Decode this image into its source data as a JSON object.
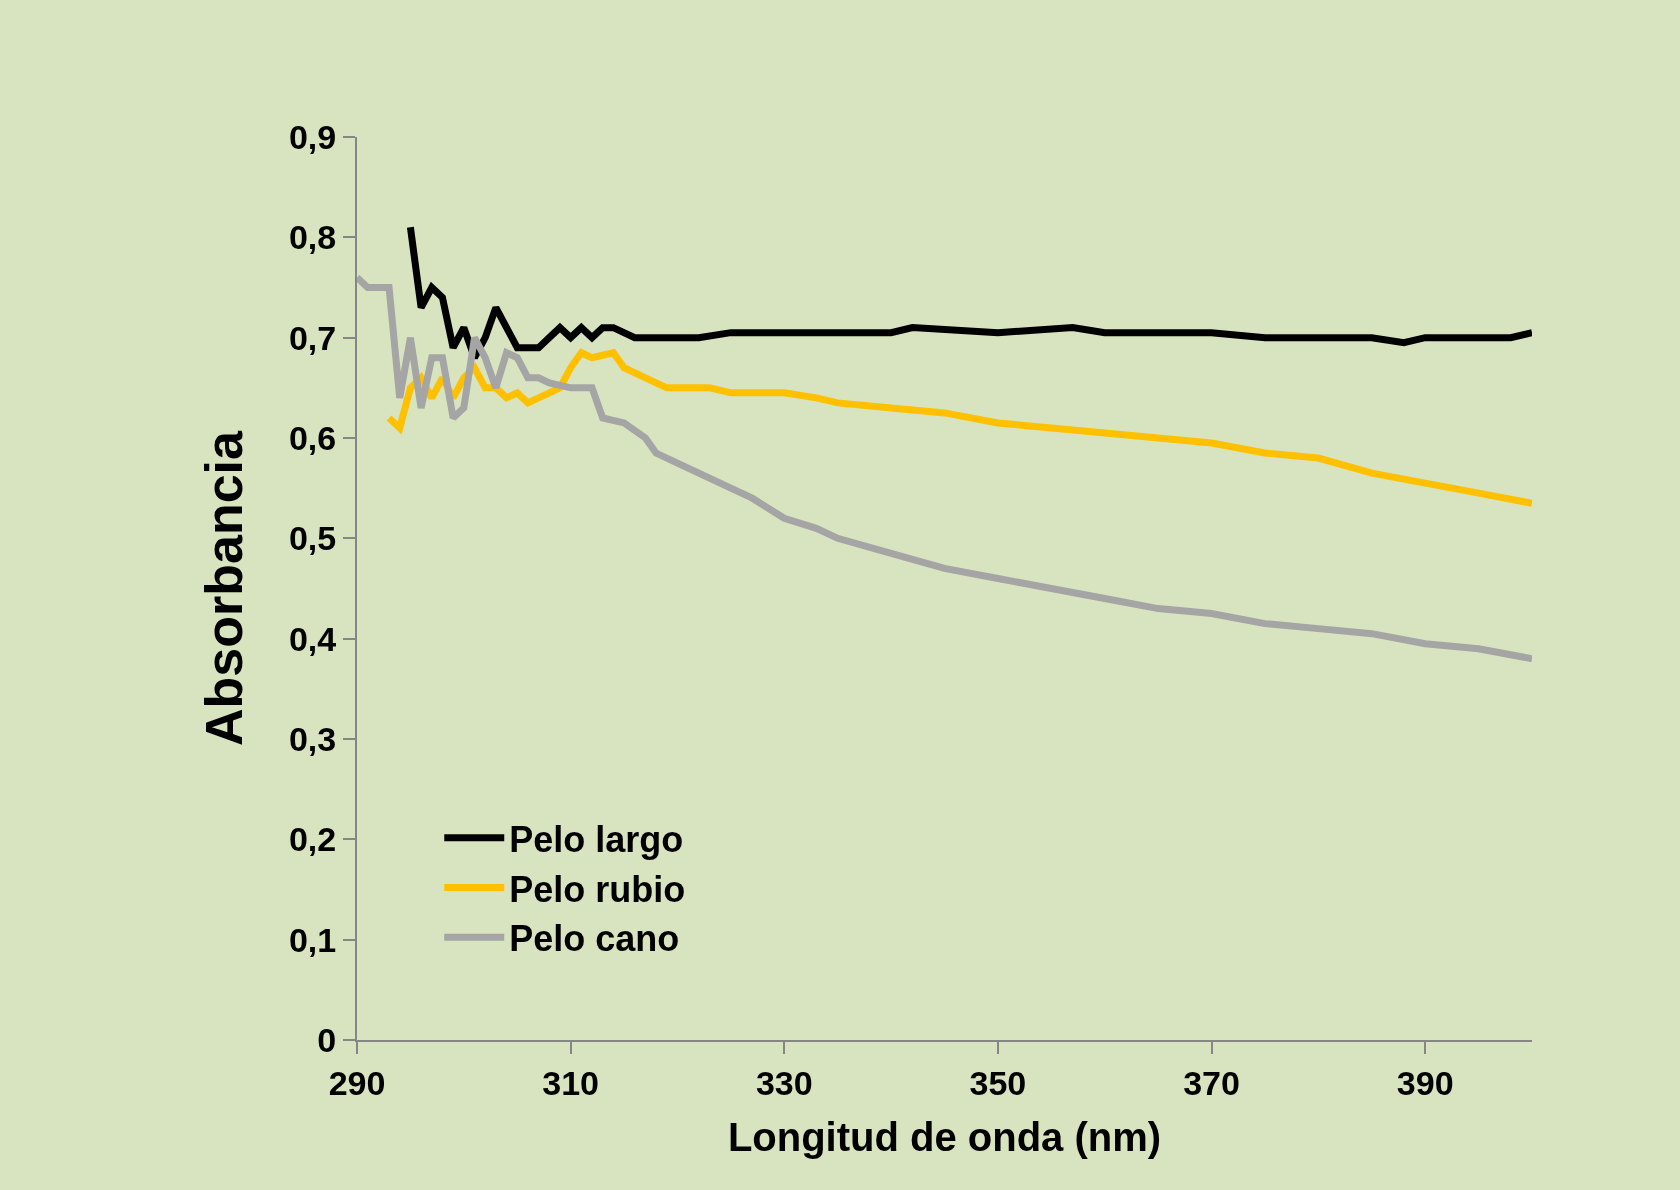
{
  "chart_data": {
    "type": "line",
    "xlabel": "Longitud de onda (nm)",
    "ylabel": "Absorbancia",
    "xlim": [
      290,
      400
    ],
    "xticks": [
      290,
      310,
      330,
      350,
      370,
      390
    ],
    "ylim": [
      0,
      0.9
    ],
    "yticks": [
      {
        "value": 0,
        "label": "0"
      },
      {
        "value": 0.1,
        "label": "0,1"
      },
      {
        "value": 0.2,
        "label": "0,2"
      },
      {
        "value": 0.3,
        "label": "0,3"
      },
      {
        "value": 0.4,
        "label": "0,4"
      },
      {
        "value": 0.5,
        "label": "0,5"
      },
      {
        "value": 0.6,
        "label": "0,6"
      },
      {
        "value": 0.7,
        "label": "0,7"
      },
      {
        "value": 0.8,
        "label": "0,8"
      },
      {
        "value": 0.9,
        "label": "0,9"
      }
    ],
    "grid": false,
    "legend": "bottom left",
    "marker": "none",
    "line_style": "solid",
    "series": [
      {
        "name": "Pelo largo",
        "color": "#000000",
        "x": [
          295,
          296,
          297,
          298,
          299,
          300,
          301,
          302,
          303,
          304,
          305,
          306,
          307,
          308,
          309,
          310,
          311,
          312,
          313,
          314,
          316,
          320,
          322,
          325,
          330,
          335,
          340,
          342,
          350,
          357,
          360,
          370,
          375,
          380,
          385,
          388,
          390,
          395,
          398,
          400
        ],
        "values": [
          0.81,
          0.73,
          0.75,
          0.74,
          0.69,
          0.71,
          0.68,
          0.7,
          0.73,
          0.71,
          0.69,
          0.69,
          0.69,
          0.7,
          0.71,
          0.7,
          0.71,
          0.7,
          0.71,
          0.71,
          0.7,
          0.7,
          0.7,
          0.705,
          0.705,
          0.705,
          0.705,
          0.71,
          0.705,
          0.71,
          0.705,
          0.705,
          0.7,
          0.7,
          0.7,
          0.695,
          0.7,
          0.7,
          0.7,
          0.705
        ]
      },
      {
        "name": "Pelo rubio",
        "color": "#ffc000",
        "x": [
          293,
          294,
          295,
          296,
          297,
          298,
          299,
          300,
          301,
          302,
          303,
          304,
          305,
          306,
          307,
          308,
          309,
          310,
          311,
          312,
          314,
          315,
          317,
          319,
          320,
          323,
          325,
          330,
          333,
          335,
          340,
          345,
          350,
          355,
          360,
          365,
          370,
          375,
          380,
          385,
          390,
          395,
          400
        ],
        "values": [
          0.62,
          0.61,
          0.65,
          0.66,
          0.64,
          0.66,
          0.64,
          0.66,
          0.67,
          0.65,
          0.65,
          0.64,
          0.645,
          0.635,
          0.64,
          0.645,
          0.65,
          0.67,
          0.685,
          0.68,
          0.685,
          0.67,
          0.66,
          0.65,
          0.65,
          0.65,
          0.645,
          0.645,
          0.64,
          0.635,
          0.63,
          0.625,
          0.615,
          0.61,
          0.605,
          0.6,
          0.595,
          0.585,
          0.58,
          0.565,
          0.555,
          0.545,
          0.535
        ]
      },
      {
        "name": "Pelo cano",
        "color": "#a5a5a5",
        "x": [
          290,
          291,
          293,
          294,
          295,
          296,
          297,
          298,
          299,
          300,
          301,
          302,
          303,
          304,
          305,
          306,
          307,
          308,
          310,
          312,
          313,
          315,
          317,
          318,
          320,
          322,
          325,
          327,
          330,
          333,
          335,
          340,
          345,
          350,
          355,
          360,
          365,
          370,
          375,
          380,
          385,
          390,
          395,
          400
        ],
        "values": [
          0.76,
          0.75,
          0.75,
          0.64,
          0.7,
          0.63,
          0.68,
          0.68,
          0.62,
          0.63,
          0.7,
          0.68,
          0.65,
          0.685,
          0.68,
          0.66,
          0.66,
          0.655,
          0.65,
          0.65,
          0.62,
          0.615,
          0.6,
          0.585,
          0.575,
          0.565,
          0.55,
          0.54,
          0.52,
          0.51,
          0.5,
          0.485,
          0.47,
          0.46,
          0.45,
          0.44,
          0.43,
          0.425,
          0.415,
          0.41,
          0.405,
          0.395,
          0.39,
          0.38
        ]
      }
    ]
  }
}
